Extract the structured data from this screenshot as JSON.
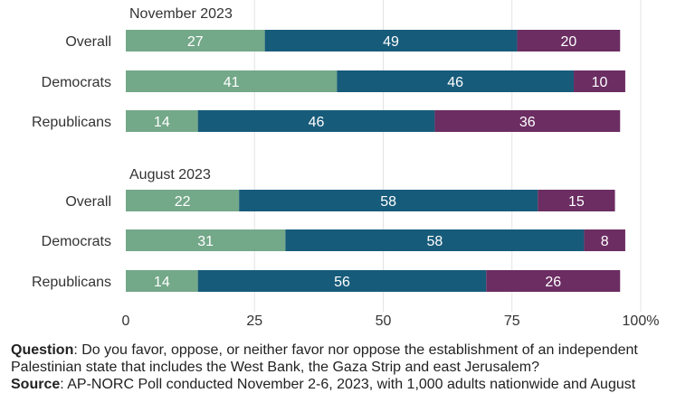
{
  "chart_data": {
    "type": "bar",
    "orientation": "horizontal",
    "stacked": true,
    "xlim": [
      0,
      100
    ],
    "x_ticks": [
      "0",
      "25",
      "50",
      "75",
      "100%"
    ],
    "grid": "vertical",
    "legend": "none",
    "colors": [
      "#73a889",
      "#175b7a",
      "#6b2d62"
    ],
    "groups": [
      {
        "title": "November 2023",
        "rows": [
          {
            "label": "Overall",
            "values": [
              27,
              49,
              20
            ]
          },
          {
            "label": "Democrats",
            "values": [
              41,
              46,
              10
            ]
          },
          {
            "label": "Republicans",
            "values": [
              14,
              46,
              36
            ]
          }
        ]
      },
      {
        "title": "August 2023",
        "rows": [
          {
            "label": "Overall",
            "values": [
              22,
              58,
              15
            ]
          },
          {
            "label": "Democrats",
            "values": [
              31,
              58,
              8
            ]
          },
          {
            "label": "Republicans",
            "values": [
              14,
              56,
              26
            ]
          }
        ]
      }
    ]
  },
  "footer": {
    "question_label": "Question",
    "question_text": ": Do you favor, oppose, or neither favor nor oppose the establishment of an independent Palestinian state that includes the West Bank, the Gaza Strip  and east Jerusalem?",
    "source_label": "Source",
    "source_text": ": AP-NORC Poll conducted November 2-6, 2023, with 1,000 adults nationwide and August"
  }
}
